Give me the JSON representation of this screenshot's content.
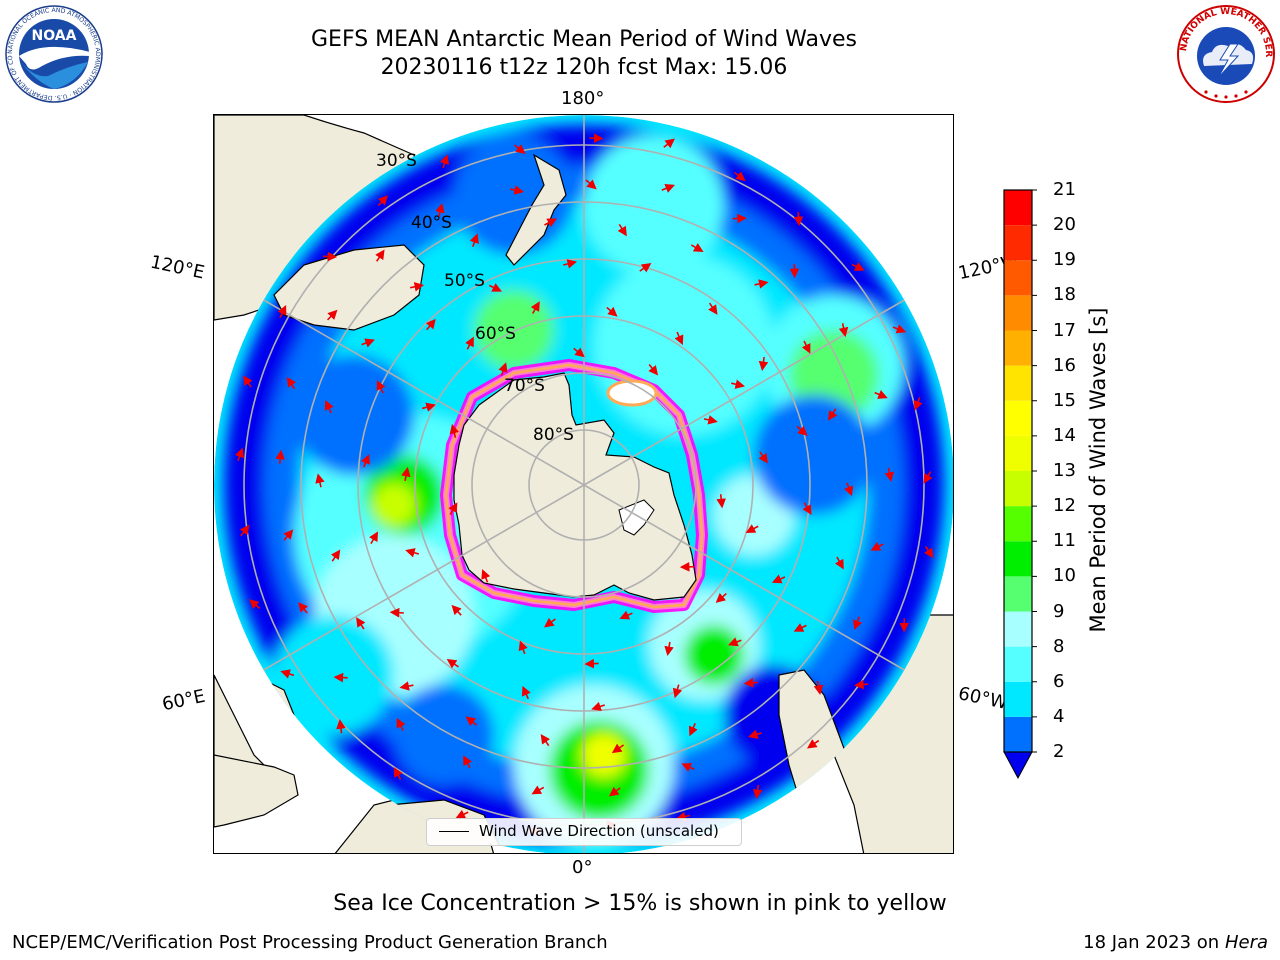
{
  "title": {
    "line1": "GEFS MEAN Antarctic Mean Period of Wind Waves",
    "line2": "20230116 t12z 120h fcst   Max: 15.06"
  },
  "map": {
    "projection": "south polar stereographic",
    "longitude_labels": {
      "top": "180°",
      "bottom": "0°",
      "left_upper": "120°E",
      "left_lower": "60°E",
      "right_upper": "120°W",
      "right_lower": "60°W"
    },
    "latitude_labels": [
      "30°S",
      "40°S",
      "50°S",
      "60°S",
      "70°S",
      "80°S"
    ],
    "field_colors": [
      "#0000ee",
      "#0070ff",
      "#00e8ff",
      "#55ffff",
      "#a8ffff",
      "#55ff70",
      "#00ee00",
      "#55ff00",
      "#c8ff00",
      "#f0ff00",
      "#ffff00",
      "#ffe400",
      "#ffb000",
      "#ff8c00",
      "#ff5a00",
      "#ff2a00",
      "#ff0000"
    ],
    "land_color": "#efecdc",
    "ice_colors": [
      "#ff00ff",
      "#ff7fd0",
      "#ffaa55",
      "#ffff66"
    ],
    "arrow_color": "#ee0000",
    "legend_label": "Wind Wave Direction (unscaled)"
  },
  "colorbar": {
    "label": "Mean Period of Wind Waves [s]",
    "ticks": [
      "2",
      "4",
      "6",
      "8",
      "9",
      "10",
      "11",
      "12",
      "13",
      "14",
      "15",
      "16",
      "17",
      "18",
      "19",
      "20",
      "21"
    ],
    "colors": [
      "#0070ff",
      "#00e8ff",
      "#55ffff",
      "#a8ffff",
      "#55ff70",
      "#00ee00",
      "#55ff00",
      "#c8ff00",
      "#f0ff00",
      "#ffff00",
      "#ffe400",
      "#ffb000",
      "#ff8c00",
      "#ff5a00",
      "#ff2a00",
      "#ff0000"
    ],
    "extend_min_color": "#0000ee"
  },
  "caption": "Sea Ice Concentration > 15% is shown in pink to yellow",
  "footer": {
    "left": "NCEP/EMC/Verification Post Processing Product Generation Branch",
    "right_date": "18 Jan 2023 on ",
    "right_host": "Hera"
  },
  "logos": {
    "noaa_text": "NOAA",
    "noaa_ring": "NATIONAL OCEANIC AND ATMOSPHERIC ADMINISTRATION · U.S. DEPARTMENT OF COMMERCE ·",
    "nws_ring": "NATIONAL WEATHER SERVICE"
  }
}
